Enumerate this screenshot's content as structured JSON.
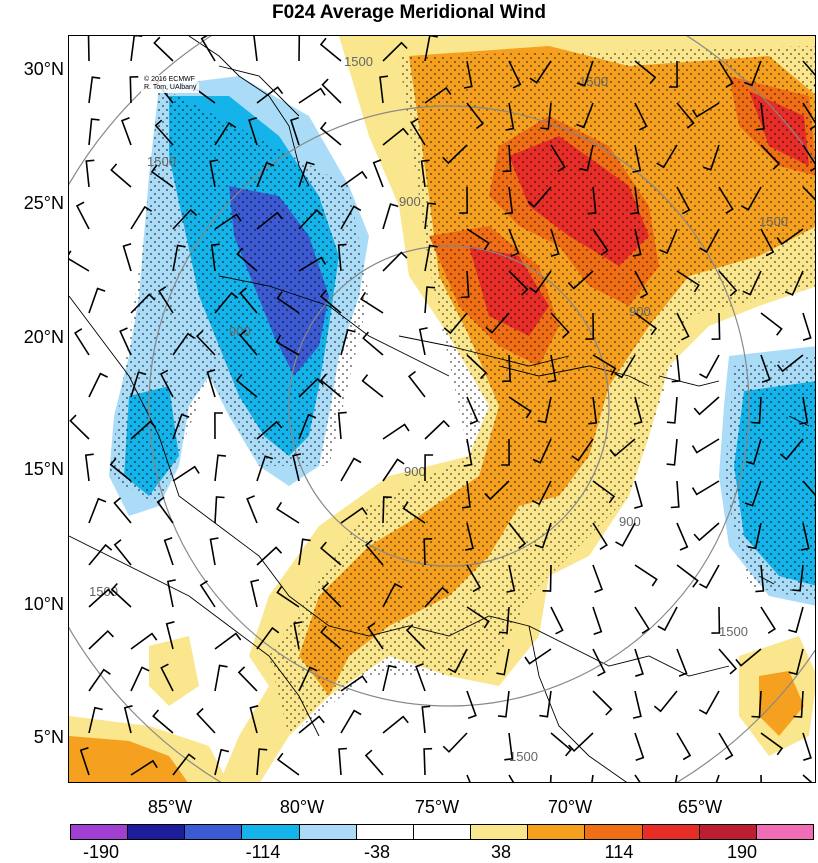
{
  "title": "F024 Average Meridional Wind",
  "credit": {
    "line1": "© 2016 ECMWF",
    "line2": "R. Tom, UAlbany"
  },
  "lat_labels": [
    "30°N",
    "25°N",
    "20°N",
    "15°N",
    "10°N",
    "5°N"
  ],
  "lon_labels": [
    "85°W",
    "80°W",
    "75°W",
    "70°W",
    "65°W"
  ],
  "contour_labels": [
    "1500",
    "1500",
    "1500",
    "1500",
    "900",
    "900",
    "900",
    "900",
    "900",
    "1500",
    "1500",
    "1500"
  ],
  "colorbar": {
    "colors": [
      "#a040d0",
      "#1e1e9c",
      "#3c5ad2",
      "#14b4eb",
      "#aadcf8",
      "#ffffff",
      "#ffffff",
      "#fae68c",
      "#f5a01e",
      "#f06e14",
      "#e62d28",
      "#be1e32",
      "#f06eb4"
    ],
    "labels": [
      "-190",
      "-114",
      "-38",
      "38",
      "114",
      "190"
    ]
  },
  "legend_colors": {
    "strong_negative": "#3c5ad2",
    "negative": "#14b4eb",
    "weak_negative": "#aadcf8",
    "weak_positive": "#fae68c",
    "positive": "#f5a01e",
    "strong_positive": "#f06e14",
    "very_strong_positive": "#e62d28"
  }
}
